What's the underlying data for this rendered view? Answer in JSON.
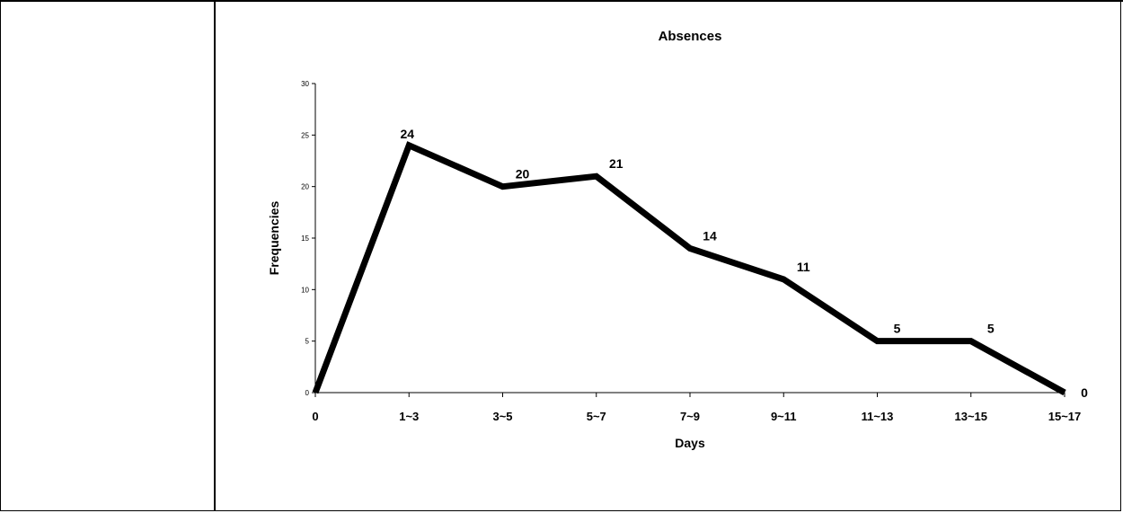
{
  "chart_data": {
    "type": "line",
    "title": "Absences",
    "xlabel": "Days",
    "ylabel": "Frequencies",
    "categories": [
      "0",
      "1~3",
      "3~5",
      "5~7",
      "7~9",
      "9~11",
      "11~13",
      "13~15",
      "15~17"
    ],
    "values": [
      0,
      24,
      20,
      21,
      14,
      11,
      5,
      5,
      0
    ],
    "data_labels": [
      "",
      "24",
      "20",
      "21",
      "14",
      "11",
      "5",
      "5",
      "0"
    ],
    "yticks": [
      "0",
      "5",
      "10",
      "15",
      "20",
      "25",
      "30"
    ],
    "ylim": [
      0,
      30
    ],
    "grid": false,
    "legend": "none",
    "line_color": "#000000"
  }
}
